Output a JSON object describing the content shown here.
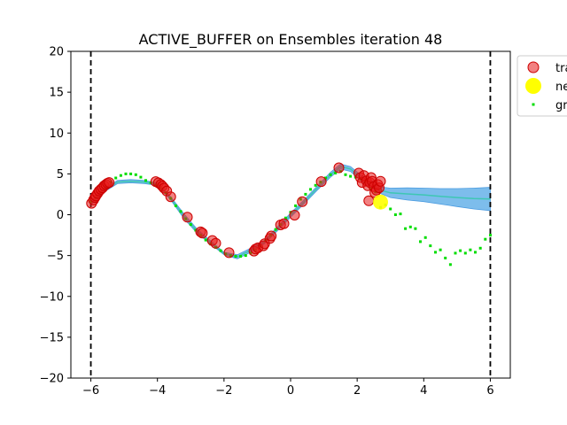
{
  "chart_data": {
    "type": "scatter",
    "title": "ACTIVE_BUFFER on Ensembles iteration 48",
    "xlabel": "",
    "ylabel": "",
    "xlim": [
      -6.6,
      6.6
    ],
    "ylim": [
      -20,
      20
    ],
    "x_ticks": [
      -6,
      -4,
      -2,
      0,
      2,
      4,
      6
    ],
    "y_ticks": [
      -20,
      -15,
      -10,
      -5,
      0,
      5,
      10,
      15,
      20
    ],
    "x_tick_labels": [
      "−6",
      "−4",
      "−2",
      "0",
      "2",
      "4",
      "6"
    ],
    "y_tick_labels": [
      "−20",
      "−15",
      "−10",
      "−5",
      "0",
      "5",
      "10",
      "15",
      "20"
    ],
    "grid": false,
    "legend_position": "upper right, outside the axes (clipped)",
    "legend_entries": [
      "tra",
      "ne",
      "gr"
    ],
    "bounds_vlines": [
      -6,
      6
    ],
    "colors": {
      "train": "#e8191a",
      "train_edge": "#cc0000",
      "new": "#ffff00",
      "ground_truth": "#00dd00",
      "band": "#6fb6ea",
      "mean": "#2ec9a5",
      "bounds": "#000000"
    },
    "series": [
      {
        "name": "tra",
        "kind": "train",
        "x": [
          -5.98,
          -5.92,
          -5.88,
          -5.85,
          -5.8,
          -5.75,
          -5.7,
          -5.65,
          -5.6,
          -5.55,
          -5.5,
          -5.45,
          -4.05,
          -3.97,
          -3.9,
          -3.85,
          -3.8,
          -3.72,
          -3.6,
          -3.1,
          -2.7,
          -2.65,
          -2.35,
          -2.25,
          -1.85,
          -1.1,
          -1.05,
          -0.98,
          -0.82,
          -0.78,
          -0.62,
          -0.58,
          -0.3,
          -0.2,
          0.12,
          0.35,
          0.92,
          1.45,
          2.05,
          2.1,
          2.15,
          2.2,
          2.28,
          2.32,
          2.38,
          2.42,
          2.45,
          2.5,
          2.53,
          2.58,
          2.62,
          2.66,
          2.7,
          2.35
        ],
        "y": [
          1.4,
          1.8,
          2.1,
          2.3,
          2.6,
          2.9,
          3.1,
          3.3,
          3.55,
          3.7,
          3.85,
          3.95,
          4.05,
          3.9,
          3.7,
          3.5,
          3.25,
          2.9,
          2.2,
          -0.3,
          -2.1,
          -2.25,
          -3.15,
          -3.5,
          -4.65,
          -4.45,
          -4.2,
          -4.05,
          -3.8,
          -3.55,
          -2.9,
          -2.6,
          -1.25,
          -1.1,
          -0.05,
          1.6,
          4.05,
          5.75,
          5.1,
          4.55,
          3.95,
          4.8,
          4.15,
          3.55,
          3.95,
          4.55,
          4.1,
          3.45,
          2.7,
          3.0,
          3.7,
          3.3,
          4.1,
          1.7
        ]
      },
      {
        "name": "ne",
        "kind": "new",
        "x": [
          2.7
        ],
        "y": [
          1.55
        ]
      },
      {
        "name": "gr",
        "kind": "ground_truth",
        "x": [
          -6.0,
          -5.85,
          -5.7,
          -5.55,
          -5.4,
          -5.25,
          -5.1,
          -4.95,
          -4.8,
          -4.65,
          -4.5,
          -4.35,
          -4.2,
          -4.05,
          -3.9,
          -3.75,
          -3.6,
          -3.45,
          -3.3,
          -3.15,
          -3.0,
          -2.85,
          -2.7,
          -2.55,
          -2.4,
          -2.25,
          -2.1,
          -1.95,
          -1.8,
          -1.65,
          -1.5,
          -1.35,
          -1.2,
          -1.05,
          -0.9,
          -0.75,
          -0.6,
          -0.45,
          -0.3,
          -0.15,
          0.0,
          0.15,
          0.3,
          0.45,
          0.6,
          0.75,
          0.9,
          1.05,
          1.2,
          1.35,
          1.5,
          1.65,
          1.8,
          1.95,
          2.1,
          2.25,
          2.4,
          2.55,
          2.7,
          2.85,
          3.0,
          3.15,
          3.3,
          3.45,
          3.6,
          3.75,
          3.9,
          4.05,
          4.2,
          4.35,
          4.5,
          4.65,
          4.8,
          4.95,
          5.1,
          5.25,
          5.4,
          5.55,
          5.7,
          5.85,
          6.0
        ],
        "y": [
          1.6,
          2.1,
          2.8,
          3.4,
          4.0,
          4.5,
          4.8,
          5.0,
          5.0,
          4.9,
          4.6,
          4.2,
          3.9,
          3.6,
          3.2,
          2.7,
          2.0,
          1.1,
          0.4,
          -0.5,
          -1.2,
          -1.9,
          -2.5,
          -3.1,
          -3.6,
          -4.0,
          -4.4,
          -4.8,
          -5.0,
          -5.1,
          -5.1,
          -5.0,
          -4.7,
          -4.3,
          -3.8,
          -3.2,
          -2.5,
          -1.8,
          -1.2,
          -0.4,
          0.3,
          1.1,
          1.9,
          2.5,
          3.1,
          3.6,
          4.0,
          4.5,
          4.9,
          5.1,
          5.3,
          4.9,
          4.7,
          4.6,
          4.4,
          4.0,
          3.2,
          2.8,
          0.9,
          1.2,
          0.7,
          0.0,
          0.1,
          -1.7,
          -1.5,
          -1.7,
          -3.3,
          -2.8,
          -3.8,
          -4.6,
          -4.3,
          -5.3,
          -6.1,
          -4.7,
          -4.4,
          -4.7,
          -4.3,
          -4.6,
          -4.1,
          -3.0,
          -2.5
        ]
      },
      {
        "name": "ensemble-band",
        "kind": "band",
        "x": [
          -6.0,
          -5.6,
          -5.2,
          -4.8,
          -4.4,
          -4.0,
          -3.6,
          -3.2,
          -2.8,
          -2.4,
          -2.0,
          -1.6,
          -1.2,
          -0.8,
          -0.4,
          0.0,
          0.4,
          0.8,
          1.2,
          1.5,
          1.8,
          2.1,
          2.4,
          2.7,
          3.0,
          3.5,
          4.0,
          4.5,
          5.0,
          5.5,
          6.0
        ],
        "upper": [
          1.7,
          3.2,
          4.2,
          4.3,
          4.2,
          3.9,
          2.2,
          0.1,
          -1.8,
          -3.2,
          -4.6,
          -4.9,
          -4.1,
          -3.2,
          -1.5,
          0.2,
          1.8,
          3.5,
          5.2,
          6.2,
          5.9,
          4.9,
          4.3,
          3.4,
          3.25,
          3.3,
          3.25,
          3.2,
          3.2,
          3.25,
          3.35
        ],
        "lower": [
          1.2,
          2.8,
          3.8,
          3.9,
          3.8,
          3.6,
          1.8,
          -0.5,
          -2.3,
          -3.6,
          -4.9,
          -5.4,
          -4.6,
          -3.6,
          -2.0,
          -0.3,
          1.3,
          3.0,
          4.6,
          5.6,
          5.3,
          4.2,
          3.4,
          2.6,
          2.1,
          1.8,
          1.6,
          1.3,
          1.0,
          0.7,
          0.5
        ]
      }
    ]
  }
}
